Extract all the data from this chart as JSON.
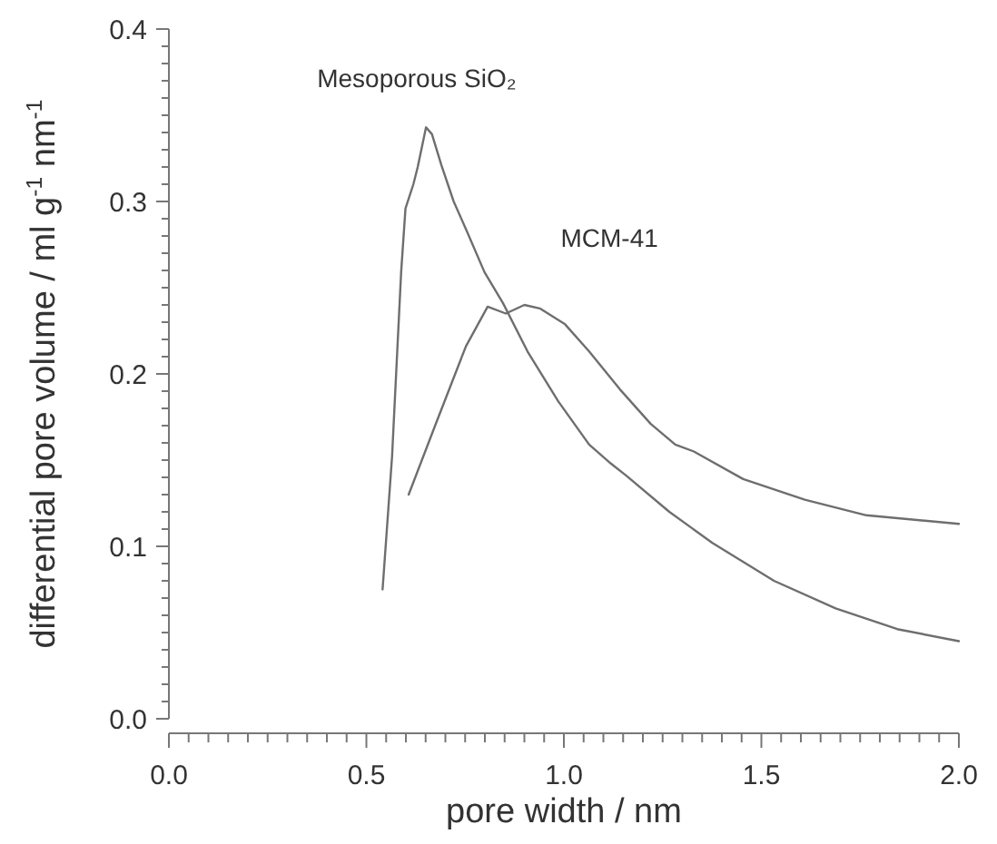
{
  "chart_data": {
    "type": "line",
    "xlabel": "pore width / nm",
    "ylabel": "differential pore volume / ml g$^{-1}$ nm$^{-1}$",
    "xlim": [
      0,
      2
    ],
    "ylim": [
      0,
      0.4
    ],
    "xticks": [
      {
        "value": 0,
        "label": "0.0"
      },
      {
        "value": 0.05,
        "label": null
      },
      {
        "value": 0.1,
        "label": null
      },
      {
        "value": 0.15,
        "label": null
      },
      {
        "value": 0.2,
        "label": null
      },
      {
        "value": 0.25,
        "label": null
      },
      {
        "value": 0.3,
        "label": null
      },
      {
        "value": 0.35,
        "label": null
      },
      {
        "value": 0.4,
        "label": null
      },
      {
        "value": 0.45,
        "label": null
      },
      {
        "value": 0.5,
        "label": "0.5"
      },
      {
        "value": 0.55,
        "label": null
      },
      {
        "value": 0.6,
        "label": null
      },
      {
        "value": 0.65,
        "label": null
      },
      {
        "value": 0.7,
        "label": null
      },
      {
        "value": 0.75,
        "label": null
      },
      {
        "value": 0.8,
        "label": null
      },
      {
        "value": 0.85,
        "label": null
      },
      {
        "value": 0.9,
        "label": null
      },
      {
        "value": 0.95,
        "label": null
      },
      {
        "value": 1,
        "label": "1.0"
      },
      {
        "value": 1.05,
        "label": null
      },
      {
        "value": 1.1,
        "label": null
      },
      {
        "value": 1.15,
        "label": null
      },
      {
        "value": 1.2,
        "label": null
      },
      {
        "value": 1.25,
        "label": null
      },
      {
        "value": 1.3,
        "label": null
      },
      {
        "value": 1.35,
        "label": null
      },
      {
        "value": 1.4,
        "label": null
      },
      {
        "value": 1.45,
        "label": null
      },
      {
        "value": 1.5,
        "label": "1.5"
      },
      {
        "value": 1.55,
        "label": null
      },
      {
        "value": 1.6,
        "label": null
      },
      {
        "value": 1.65,
        "label": null
      },
      {
        "value": 1.7,
        "label": null
      },
      {
        "value": 1.75,
        "label": null
      },
      {
        "value": 1.8,
        "label": null
      },
      {
        "value": 1.85,
        "label": null
      },
      {
        "value": 1.9,
        "label": null
      },
      {
        "value": 1.95,
        "label": null
      },
      {
        "value": 2,
        "label": "2.0"
      }
    ],
    "yticks": [
      {
        "value": 0,
        "label": "0.0"
      },
      {
        "value": 0.01,
        "label": null
      },
      {
        "value": 0.02,
        "label": null
      },
      {
        "value": 0.03,
        "label": null
      },
      {
        "value": 0.04,
        "label": null
      },
      {
        "value": 0.05,
        "label": null
      },
      {
        "value": 0.06,
        "label": null
      },
      {
        "value": 0.07,
        "label": null
      },
      {
        "value": 0.08,
        "label": null
      },
      {
        "value": 0.09,
        "label": null
      },
      0.1,
      {
        "value": 0.11,
        "label": null
      },
      {
        "value": 0.12,
        "label": null
      },
      {
        "value": 0.13,
        "label": null
      },
      {
        "value": 0.14,
        "label": null
      },
      {
        "value": 0.15,
        "label": null
      },
      {
        "value": 0.16,
        "label": null
      },
      {
        "value": 0.17,
        "label": null
      },
      {
        "value": 0.18,
        "label": null
      },
      {
        "value": 0.19,
        "label": null
      },
      0.2,
      {
        "value": 0.21,
        "label": null
      },
      {
        "value": 0.22,
        "label": null
      },
      {
        "value": 0.23,
        "label": null
      },
      {
        "value": 0.24,
        "label": null
      },
      {
        "value": 0.25,
        "label": null
      },
      {
        "value": 0.26,
        "label": null
      },
      {
        "value": 0.27,
        "label": null
      },
      {
        "value": 0.28,
        "label": null
      },
      {
        "value": 0.29,
        "label": null
      },
      0.3,
      {
        "value": 0.31,
        "label": null
      },
      {
        "value": 0.32,
        "label": null
      },
      {
        "value": 0.33,
        "label": null
      },
      {
        "value": 0.34,
        "label": null
      },
      {
        "value": 0.35,
        "label": null
      },
      {
        "value": 0.36,
        "label": null
      },
      {
        "value": 0.37,
        "label": null
      },
      {
        "value": 0.38,
        "label": null
      },
      {
        "value": 0.39,
        "label": null
      },
      0.4
    ],
    "grid": false,
    "line_style": "solid",
    "series": [
      {
        "name": "Mesoporous SiO₂",
        "color": "#6e6e6e",
        "x": [
          0.541,
          0.565,
          0.588,
          0.599,
          0.619,
          0.63,
          0.651,
          0.666,
          0.69,
          0.721,
          0.752,
          0.799,
          0.846,
          0.908,
          0.986,
          1.064,
          1.119,
          1.158,
          1.267,
          1.376,
          1.532,
          1.688,
          1.844,
          2.0
        ],
        "values": [
          0.075,
          0.152,
          0.259,
          0.296,
          0.31,
          0.32,
          0.343,
          0.339,
          0.321,
          0.3,
          0.284,
          0.259,
          0.241,
          0.213,
          0.184,
          0.159,
          0.148,
          0.141,
          0.12,
          0.102,
          0.08,
          0.064,
          0.052,
          0.045
        ]
      },
      {
        "name": "MCM-41",
        "color": "#6e6e6e",
        "x": [
          0.607,
          0.674,
          0.752,
          0.807,
          0.853,
          0.9,
          0.939,
          1.002,
          1.064,
          1.142,
          1.22,
          1.282,
          1.329,
          1.454,
          1.61,
          1.766,
          2.0
        ],
        "values": [
          0.13,
          0.17,
          0.216,
          0.239,
          0.235,
          0.24,
          0.238,
          0.229,
          0.213,
          0.191,
          0.171,
          0.159,
          0.155,
          0.139,
          0.127,
          0.118,
          0.113
        ]
      }
    ]
  }
}
